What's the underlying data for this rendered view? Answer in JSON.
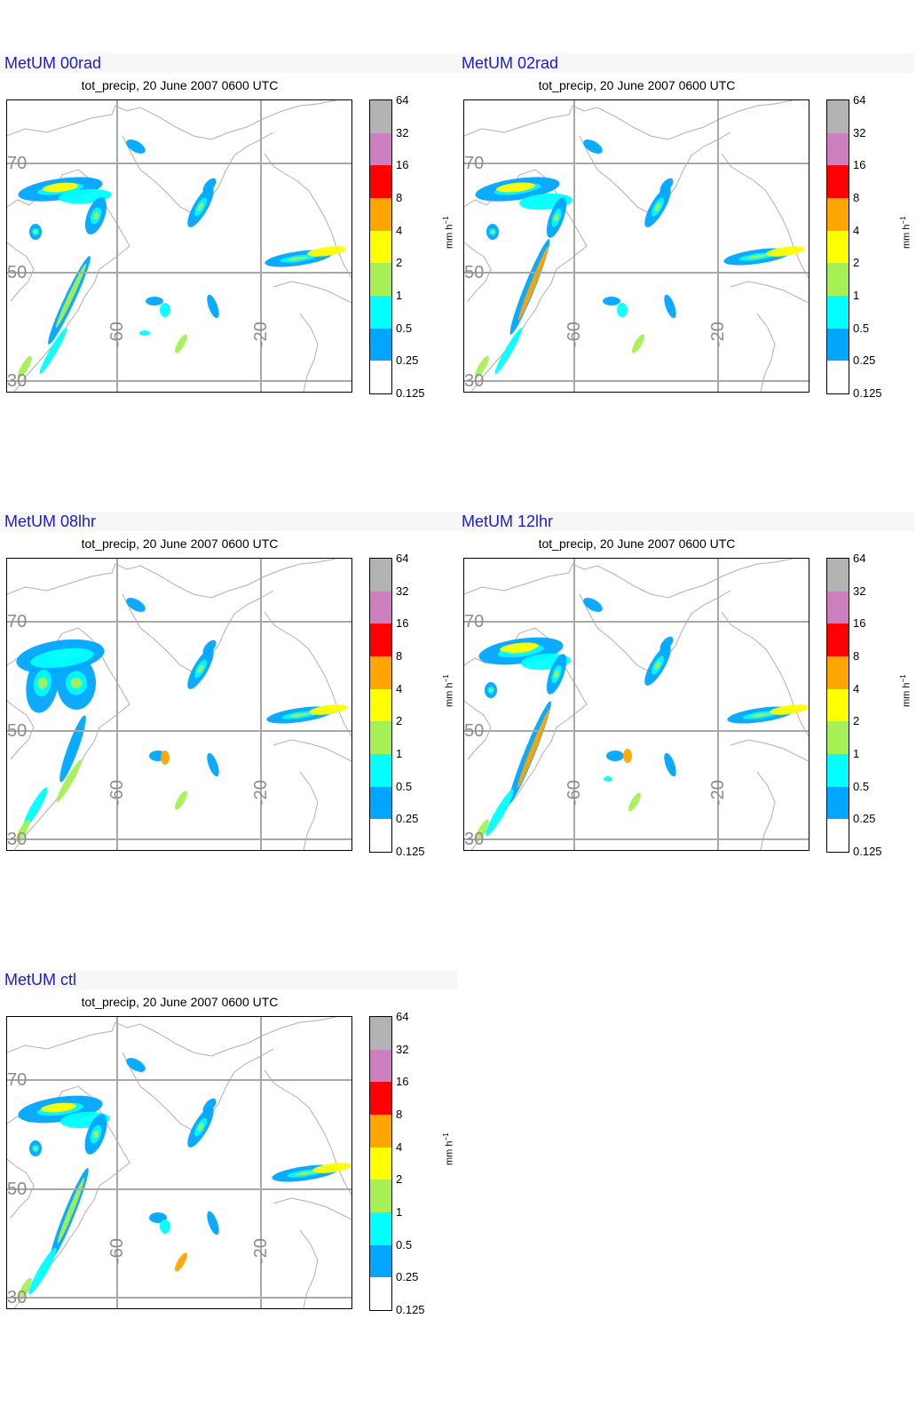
{
  "subtitle": "tot_precip, 20 June 2007 0600 UTC",
  "unit": "mm h",
  "unit_exp": "−1",
  "colorbar": {
    "labels": [
      "64",
      "32",
      "16",
      "8",
      "4",
      "2",
      "1",
      "0.5",
      "0.25",
      "0.125"
    ],
    "colors": [
      "#b3b3b3",
      "#cc7fbf",
      "#ff0000",
      "#ffa500",
      "#ffff00",
      "#a6ef55",
      "#00ffff",
      "#00a6ff",
      "#ffffff"
    ]
  },
  "grid_labels": {
    "lat": [
      "70",
      "50",
      "30"
    ],
    "lon": [
      "-60",
      "-20"
    ]
  },
  "panels": [
    {
      "name": "MetUM 00rad"
    },
    {
      "name": "MetUM 02rad"
    },
    {
      "name": "MetUM 08lhr"
    },
    {
      "name": "MetUM 12lhr"
    },
    {
      "name": "MetUM ctl"
    }
  ]
}
